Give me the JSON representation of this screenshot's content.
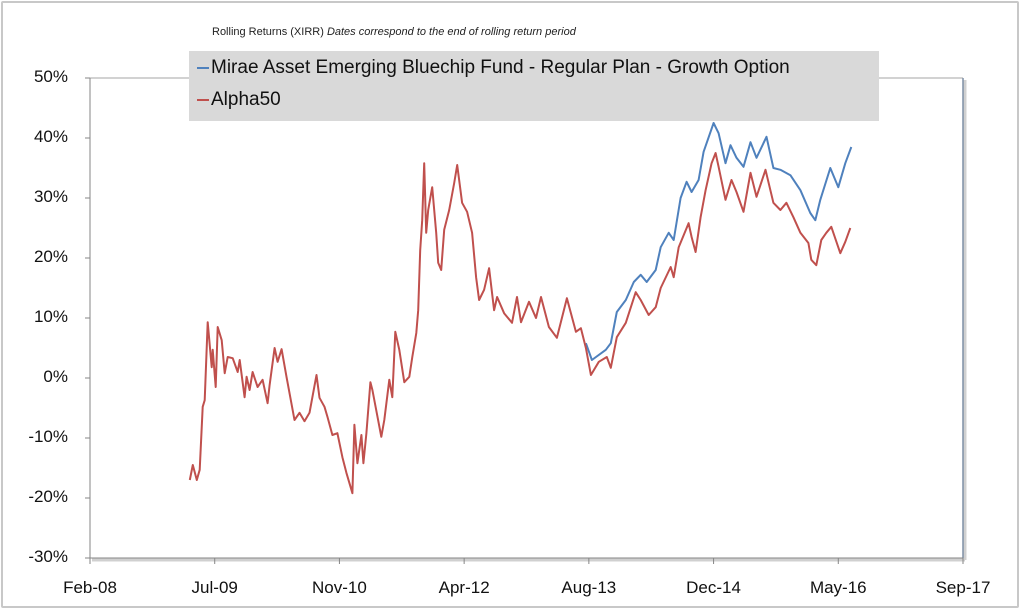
{
  "chart_data": {
    "type": "line",
    "title": "Rolling Returns (XIRR)",
    "subtitle": "Dates correspond to the end of rolling return period",
    "xlabel": "",
    "ylabel": "",
    "x_type": "date",
    "xlim": [
      "2008-02-01",
      "2017-09-01"
    ],
    "ylim": [
      -30,
      50
    ],
    "y_unit": "%",
    "x_tick_labels": [
      "Feb-08",
      "Jul-09",
      "Nov-10",
      "Apr-12",
      "Aug-13",
      "Dec-14",
      "May-16",
      "Sep-17"
    ],
    "y_tick_labels": [
      "50%",
      "40%",
      "30%",
      "20%",
      "10%",
      "0%",
      "-10%",
      "-20%",
      "-30%"
    ],
    "grid": false,
    "legend_position": "top",
    "series": [
      {
        "name": "Mirae Asset Emerging Bluechip Fund - Regular Plan - Growth Option",
        "color": "#4f81bd",
        "points": [
          [
            "2013-07-12",
            5.8
          ],
          [
            "2013-08-05",
            3.0
          ],
          [
            "2013-09-30",
            4.7
          ],
          [
            "2013-10-20",
            5.8
          ],
          [
            "2013-11-13",
            11.0
          ],
          [
            "2013-12-19",
            13.0
          ],
          [
            "2014-01-20",
            16.0
          ],
          [
            "2014-02-17",
            17.2
          ],
          [
            "2014-03-13",
            16.0
          ],
          [
            "2014-04-18",
            18.0
          ],
          [
            "2014-05-08",
            21.8
          ],
          [
            "2014-06-09",
            24.2
          ],
          [
            "2014-06-29",
            23.0
          ],
          [
            "2014-07-27",
            30.0
          ],
          [
            "2014-08-20",
            32.7
          ],
          [
            "2014-09-09",
            31.0
          ],
          [
            "2014-10-07",
            33.0
          ],
          [
            "2014-10-27",
            37.7
          ],
          [
            "2014-12-06",
            42.5
          ],
          [
            "2014-12-26",
            40.8
          ],
          [
            "2015-01-23",
            35.8
          ],
          [
            "2015-02-12",
            38.8
          ],
          [
            "2015-03-08",
            36.7
          ],
          [
            "2015-04-05",
            35.2
          ],
          [
            "2015-05-03",
            39.3
          ],
          [
            "2015-05-27",
            36.7
          ],
          [
            "2015-07-06",
            40.2
          ],
          [
            "2015-08-03",
            35.0
          ],
          [
            "2015-08-31",
            34.7
          ],
          [
            "2015-10-10",
            33.8
          ],
          [
            "2015-11-19",
            31.3
          ],
          [
            "2015-12-29",
            27.5
          ],
          [
            "2016-01-18",
            26.3
          ],
          [
            "2016-02-07",
            29.7
          ],
          [
            "2016-03-18",
            35.0
          ],
          [
            "2016-04-19",
            31.8
          ],
          [
            "2016-05-17",
            35.8
          ],
          [
            "2016-06-10",
            38.5
          ]
        ]
      },
      {
        "name": "Alpha50",
        "color": "#c0504d",
        "points": [
          [
            "2009-03-07",
            -17.0
          ],
          [
            "2009-03-19",
            -14.5
          ],
          [
            "2009-04-04",
            -17.0
          ],
          [
            "2009-04-16",
            -15.3
          ],
          [
            "2009-04-28",
            -4.8
          ],
          [
            "2009-05-06",
            -3.7
          ],
          [
            "2009-05-18",
            9.3
          ],
          [
            "2009-06-03",
            1.8
          ],
          [
            "2009-06-07",
            4.7
          ],
          [
            "2009-06-19",
            -1.5
          ],
          [
            "2009-06-27",
            8.5
          ],
          [
            "2009-07-13",
            6.3
          ],
          [
            "2009-07-25",
            0.8
          ],
          [
            "2009-08-06",
            3.5
          ],
          [
            "2009-08-26",
            3.3
          ],
          [
            "2009-09-15",
            1.0
          ],
          [
            "2009-09-23",
            3.0
          ],
          [
            "2009-10-13",
            -3.2
          ],
          [
            "2009-10-21",
            0.2
          ],
          [
            "2009-11-02",
            -2.0
          ],
          [
            "2009-11-14",
            1.0
          ],
          [
            "2009-12-04",
            -1.5
          ],
          [
            "2009-12-24",
            -0.3
          ],
          [
            "2010-01-13",
            -4.2
          ],
          [
            "2010-01-21",
            -1.2
          ],
          [
            "2010-02-10",
            5.0
          ],
          [
            "2010-02-22",
            2.7
          ],
          [
            "2010-03-10",
            4.8
          ],
          [
            "2010-03-30",
            0.2
          ],
          [
            "2010-05-01",
            -7.0
          ],
          [
            "2010-05-21",
            -5.8
          ],
          [
            "2010-06-10",
            -7.2
          ],
          [
            "2010-06-30",
            -5.8
          ],
          [
            "2010-07-28",
            0.5
          ],
          [
            "2010-08-09",
            -3.3
          ],
          [
            "2010-08-29",
            -4.8
          ],
          [
            "2010-09-10",
            -6.5
          ],
          [
            "2010-09-30",
            -9.5
          ],
          [
            "2010-10-20",
            -9.2
          ],
          [
            "2010-11-09",
            -13.2
          ],
          [
            "2010-11-25",
            -15.8
          ],
          [
            "2010-12-19",
            -19.2
          ],
          [
            "2010-12-27",
            -7.8
          ],
          [
            "2011-01-08",
            -14.2
          ],
          [
            "2011-01-24",
            -9.5
          ],
          [
            "2011-02-01",
            -14.2
          ],
          [
            "2011-02-13",
            -9.2
          ],
          [
            "2011-03-01",
            -0.7
          ],
          [
            "2011-03-09",
            -2.0
          ],
          [
            "2011-04-14",
            -9.8
          ],
          [
            "2011-04-26",
            -7.0
          ],
          [
            "2011-05-16",
            -0.3
          ],
          [
            "2011-05-28",
            -3.2
          ],
          [
            "2011-06-09",
            7.7
          ],
          [
            "2011-06-25",
            4.7
          ],
          [
            "2011-07-15",
            -0.7
          ],
          [
            "2011-08-04",
            0.2
          ],
          [
            "2011-08-16",
            3.5
          ],
          [
            "2011-09-01",
            7.5
          ],
          [
            "2011-09-09",
            11.3
          ],
          [
            "2011-09-17",
            21.3
          ],
          [
            "2011-09-25",
            26.3
          ],
          [
            "2011-10-03",
            35.8
          ],
          [
            "2011-10-11",
            24.2
          ],
          [
            "2011-10-19",
            28.0
          ],
          [
            "2011-11-04",
            31.8
          ],
          [
            "2011-11-20",
            24.2
          ],
          [
            "2011-11-28",
            19.2
          ],
          [
            "2011-12-10",
            18.0
          ],
          [
            "2011-12-22",
            24.7
          ],
          [
            "2012-01-11",
            28.0
          ],
          [
            "2012-01-31",
            32.5
          ],
          [
            "2012-02-12",
            35.5
          ],
          [
            "2012-03-03",
            29.2
          ],
          [
            "2012-03-23",
            27.7
          ],
          [
            "2012-04-12",
            24.2
          ],
          [
            "2012-04-28",
            16.8
          ],
          [
            "2012-05-10",
            13.0
          ],
          [
            "2012-05-30",
            14.7
          ],
          [
            "2012-06-19",
            18.3
          ],
          [
            "2012-07-09",
            11.3
          ],
          [
            "2012-07-21",
            13.5
          ],
          [
            "2012-08-18",
            10.8
          ],
          [
            "2012-09-19",
            9.2
          ],
          [
            "2012-10-09",
            13.5
          ],
          [
            "2012-10-25",
            9.3
          ],
          [
            "2012-11-26",
            12.7
          ],
          [
            "2012-12-24",
            10.0
          ],
          [
            "2013-01-13",
            13.5
          ],
          [
            "2013-02-14",
            8.5
          ],
          [
            "2013-03-18",
            6.7
          ],
          [
            "2013-04-27",
            13.3
          ],
          [
            "2013-06-02",
            7.7
          ],
          [
            "2013-06-22",
            8.3
          ],
          [
            "2013-07-12",
            5.0
          ],
          [
            "2013-08-01",
            0.5
          ],
          [
            "2013-09-02",
            2.7
          ],
          [
            "2013-10-04",
            3.5
          ],
          [
            "2013-10-20",
            1.7
          ],
          [
            "2013-11-13",
            6.8
          ],
          [
            "2013-12-19",
            9.2
          ],
          [
            "2014-01-28",
            14.3
          ],
          [
            "2014-02-17",
            13.0
          ],
          [
            "2014-03-21",
            10.5
          ],
          [
            "2014-04-18",
            11.8
          ],
          [
            "2014-05-08",
            15.0
          ],
          [
            "2014-06-17",
            18.5
          ],
          [
            "2014-06-29",
            16.8
          ],
          [
            "2014-07-19",
            21.8
          ],
          [
            "2014-08-28",
            25.8
          ],
          [
            "2014-09-09",
            23.5
          ],
          [
            "2014-09-25",
            21.0
          ],
          [
            "2014-10-15",
            26.8
          ],
          [
            "2014-11-04",
            31.3
          ],
          [
            "2014-11-28",
            35.8
          ],
          [
            "2014-12-14",
            37.5
          ],
          [
            "2014-12-26",
            35.2
          ],
          [
            "2015-01-23",
            29.7
          ],
          [
            "2015-02-16",
            33.0
          ],
          [
            "2015-03-08",
            31.0
          ],
          [
            "2015-04-05",
            27.7
          ],
          [
            "2015-05-03",
            34.2
          ],
          [
            "2015-05-27",
            30.2
          ],
          [
            "2015-07-02",
            34.7
          ],
          [
            "2015-08-03",
            29.2
          ],
          [
            "2015-08-31",
            28.0
          ],
          [
            "2015-09-24",
            29.2
          ],
          [
            "2015-10-22",
            26.8
          ],
          [
            "2015-11-19",
            24.2
          ],
          [
            "2015-12-21",
            22.5
          ],
          [
            "2016-01-02",
            19.7
          ],
          [
            "2016-01-22",
            18.8
          ],
          [
            "2016-02-11",
            23.0
          ],
          [
            "2016-03-02",
            24.2
          ],
          [
            "2016-03-22",
            25.2
          ],
          [
            "2016-04-27",
            20.8
          ],
          [
            "2016-05-17",
            22.7
          ],
          [
            "2016-06-06",
            25.0
          ]
        ]
      }
    ]
  }
}
